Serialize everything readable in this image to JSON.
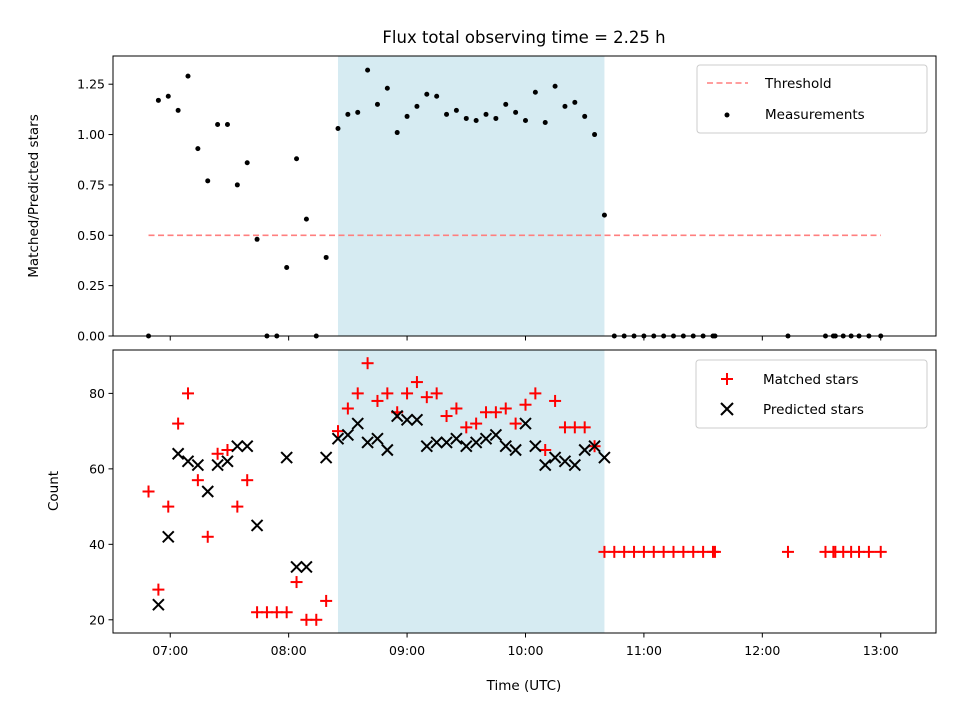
{
  "title": "Flux total observing time = 2.25 h",
  "xlabel": "Time (UTC)",
  "colors": {
    "threshold": "#ff7f7f",
    "measurements": "#000000",
    "matched": "#ff0000",
    "predicted": "#000000",
    "shade": "#add8e6"
  },
  "chart_data": [
    {
      "type": "scatter",
      "ylabel": "Matched/Predicted stars",
      "xlim": [
        "06:31",
        "13:28"
      ],
      "ylim": [
        0,
        1.39
      ],
      "xticks": [
        "07:00",
        "08:00",
        "09:00",
        "10:00",
        "11:00",
        "12:00",
        "13:00"
      ],
      "yticks": [
        "0.00",
        "0.25",
        "0.50",
        "0.75",
        "1.00",
        "1.25"
      ],
      "legend_position": "top-right",
      "shaded_region": [
        "08:25",
        "10:40"
      ],
      "threshold": {
        "name": "Threshold",
        "y": 0.5,
        "x_range": [
          "06:49",
          "13:00"
        ]
      },
      "series": [
        {
          "name": "Measurements",
          "x": [
            "06:49",
            "06:54",
            "06:59",
            "07:04",
            "07:09",
            "07:14",
            "07:19",
            "07:24",
            "07:29",
            "07:34",
            "07:39",
            "07:44",
            "07:49",
            "07:54",
            "07:59",
            "08:04",
            "08:09",
            "08:14",
            "08:19",
            "08:25",
            "08:30",
            "08:35",
            "08:40",
            "08:45",
            "08:50",
            "08:55",
            "09:00",
            "09:05",
            "09:10",
            "09:15",
            "09:20",
            "09:25",
            "09:30",
            "09:35",
            "09:40",
            "09:45",
            "09:50",
            "09:55",
            "10:00",
            "10:05",
            "10:10",
            "10:15",
            "10:20",
            "10:25",
            "10:30",
            "10:35",
            "10:40",
            "10:45",
            "10:50",
            "10:55",
            "11:00",
            "11:05",
            "11:10",
            "11:15",
            "11:20",
            "11:25",
            "11:30",
            "11:35",
            "11:36",
            "12:13",
            "12:32",
            "12:36",
            "12:37",
            "12:41",
            "12:45",
            "12:49",
            "12:54",
            "13:00"
          ],
          "y": [
            0.0,
            1.17,
            1.19,
            1.12,
            1.29,
            0.93,
            0.77,
            1.05,
            1.05,
            0.75,
            0.86,
            0.48,
            0.0,
            0.0,
            0.34,
            0.88,
            0.58,
            0.0,
            0.39,
            1.03,
            1.1,
            1.11,
            1.32,
            1.15,
            1.23,
            1.01,
            1.09,
            1.14,
            1.2,
            1.19,
            1.1,
            1.12,
            1.08,
            1.07,
            1.1,
            1.08,
            1.15,
            1.11,
            1.07,
            1.21,
            1.06,
            1.24,
            1.14,
            1.16,
            1.09,
            1.0,
            0.6,
            0.0,
            0.0,
            0.0,
            0.0,
            0.0,
            0.0,
            0.0,
            0.0,
            0.0,
            0.0,
            0.0,
            0.0,
            0.0,
            0.0,
            0.0,
            0.0,
            0.0,
            0.0,
            0.0,
            0.0,
            0.0
          ]
        }
      ]
    },
    {
      "type": "scatter",
      "ylabel": "Count",
      "xlim": [
        "06:31",
        "13:28"
      ],
      "ylim": [
        16.5,
        91.5
      ],
      "xticks": [
        "07:00",
        "08:00",
        "09:00",
        "10:00",
        "11:00",
        "12:00",
        "13:00"
      ],
      "yticks": [
        "20",
        "40",
        "60",
        "80"
      ],
      "legend_position": "top-right",
      "shaded_region": [
        "08:25",
        "10:40"
      ],
      "series": [
        {
          "name": "Matched stars",
          "x": [
            "06:49",
            "06:54",
            "06:59",
            "07:04",
            "07:09",
            "07:14",
            "07:19",
            "07:24",
            "07:29",
            "07:34",
            "07:39",
            "07:44",
            "07:49",
            "07:54",
            "07:59",
            "08:04",
            "08:09",
            "08:14",
            "08:19",
            "08:25",
            "08:30",
            "08:35",
            "08:40",
            "08:45",
            "08:50",
            "08:55",
            "09:00",
            "09:05",
            "09:10",
            "09:15",
            "09:20",
            "09:25",
            "09:30",
            "09:35",
            "09:40",
            "09:45",
            "09:50",
            "09:55",
            "10:00",
            "10:05",
            "10:10",
            "10:15",
            "10:20",
            "10:25",
            "10:30",
            "10:35",
            "10:40",
            "10:45",
            "10:50",
            "10:55",
            "11:00",
            "11:05",
            "11:10",
            "11:15",
            "11:20",
            "11:25",
            "11:30",
            "11:35",
            "11:36",
            "12:13",
            "12:32",
            "12:36",
            "12:37",
            "12:41",
            "12:45",
            "12:49",
            "12:54",
            "13:00"
          ],
          "y": [
            54,
            28,
            50,
            72,
            80,
            57,
            42,
            64,
            65,
            50,
            57,
            22,
            22,
            22,
            22,
            30,
            20,
            20,
            25,
            70,
            76,
            80,
            88,
            78,
            80,
            75,
            80,
            83,
            79,
            80,
            74,
            76,
            71,
            72,
            75,
            75,
            76,
            72,
            77,
            80,
            65,
            78,
            71,
            71,
            71,
            66,
            38,
            38,
            38,
            38,
            38,
            38,
            38,
            38,
            38,
            38,
            38,
            38,
            38,
            38,
            38,
            38,
            38,
            38,
            38,
            38,
            38,
            38
          ]
        },
        {
          "name": "Predicted stars",
          "x": [
            "06:54",
            "06:59",
            "07:04",
            "07:09",
            "07:14",
            "07:19",
            "07:24",
            "07:29",
            "07:34",
            "07:39",
            "07:44",
            "07:59",
            "08:04",
            "08:09",
            "08:19",
            "08:25",
            "08:30",
            "08:35",
            "08:40",
            "08:45",
            "08:50",
            "08:55",
            "09:00",
            "09:05",
            "09:10",
            "09:15",
            "09:20",
            "09:25",
            "09:30",
            "09:35",
            "09:40",
            "09:45",
            "09:50",
            "09:55",
            "10:00",
            "10:05",
            "10:10",
            "10:15",
            "10:20",
            "10:25",
            "10:30",
            "10:35",
            "10:40"
          ],
          "y": [
            24,
            42,
            64,
            62,
            61,
            54,
            61,
            62,
            66,
            66,
            45,
            63,
            34,
            34,
            63,
            68,
            69,
            72,
            67,
            68,
            65,
            74,
            73,
            73,
            66,
            67,
            67,
            68,
            66,
            67,
            68,
            69,
            66,
            65,
            72,
            66,
            61,
            63,
            62,
            61,
            65,
            66,
            63
          ]
        }
      ]
    }
  ]
}
